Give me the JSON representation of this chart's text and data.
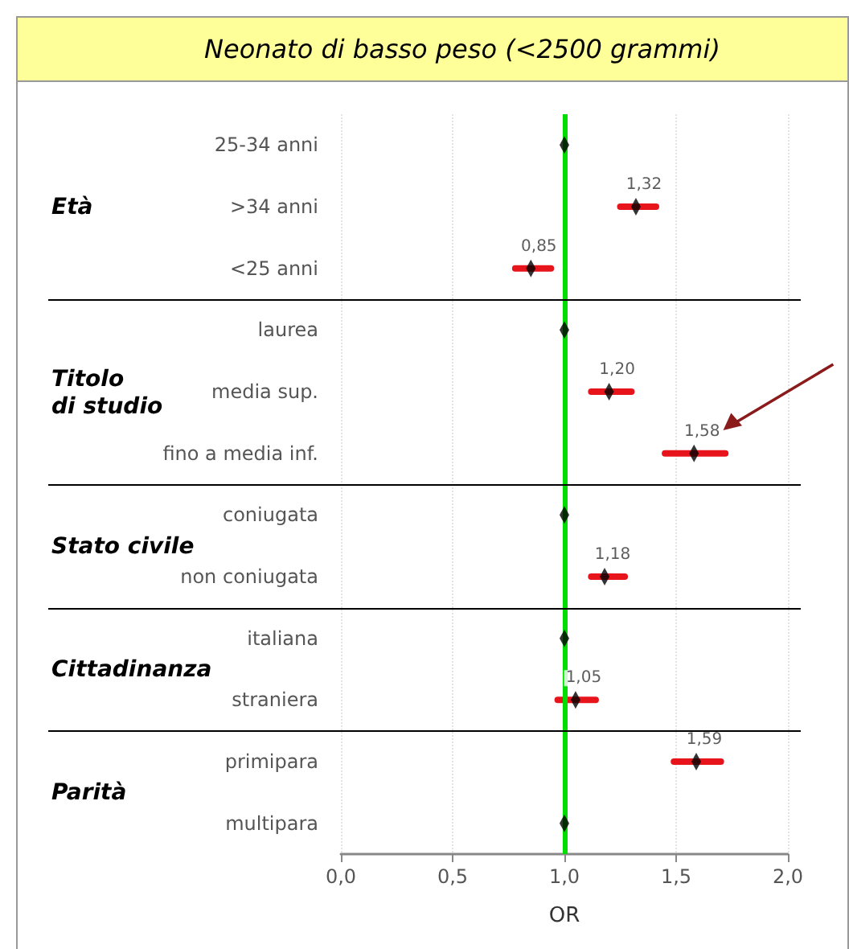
{
  "chart_data": {
    "type": "scatter",
    "orientation": "horizontal",
    "title": "Neonato di basso peso (<2500 grammi)",
    "xlabel": "OR",
    "categories": [
      "25-34 anni",
      ">34 anni",
      "<25 anni",
      "laurea",
      "media sup.",
      "fino a media inf.",
      "coniugata",
      "non coniugata",
      "italiana",
      "straniera",
      "primipara",
      "multipara"
    ],
    "series": [
      {
        "color": "#000000",
        "values": [
          1,
          1.32,
          0.85,
          1,
          1.2,
          1.58,
          1,
          1.18,
          1,
          1.05,
          1.59,
          1
        ],
        "errors": [
          null,
          [
            1.25,
            1.41
          ],
          [
            0.78,
            0.94
          ],
          null,
          [
            1.12,
            1.3
          ],
          [
            1.45,
            1.72
          ],
          null,
          [
            1.12,
            1.27
          ],
          null,
          [
            0.97,
            1.14
          ],
          [
            1.49,
            1.7
          ],
          null
        ],
        "value_labels": [
          null,
          "1,32",
          "0,85",
          null,
          "1,20",
          "1,58",
          null,
          "1,18",
          null,
          "1,05",
          "1,59",
          null
        ]
      }
    ],
    "xlim": [
      0,
      2
    ],
    "xticks": [
      {
        "value": 0,
        "label": "0,0"
      },
      {
        "value": 0.5,
        "label": "0,5"
      },
      {
        "value": 1,
        "label": "1,0"
      },
      {
        "value": 1.5,
        "label": "1,5"
      },
      {
        "value": 2,
        "label": "2,0"
      }
    ],
    "grid": "x",
    "ref_lines": [
      {
        "axis": "x",
        "value": 1,
        "color": "#00dd00"
      }
    ],
    "marker": "diamond",
    "annotations": [
      "Età",
      "Titolo\ndi studio",
      "Stato civile",
      "Cittadinanza",
      "Parità"
    ]
  }
}
